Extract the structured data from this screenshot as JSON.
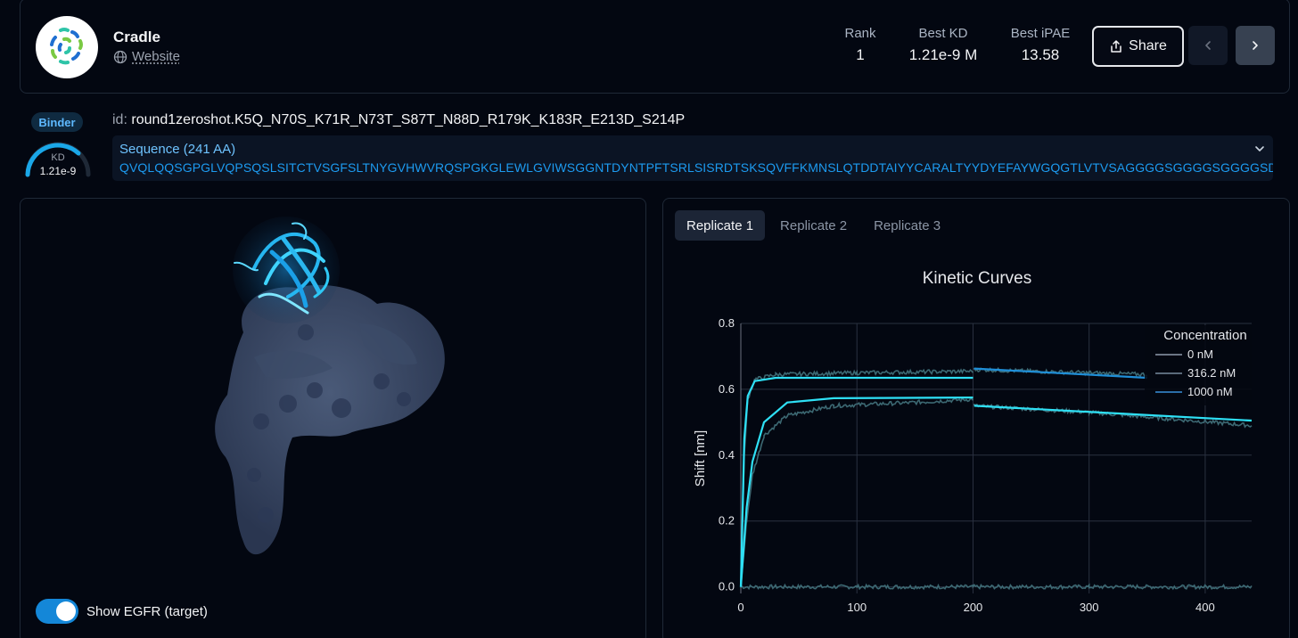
{
  "header": {
    "org_name": "Cradle",
    "website_label": "Website",
    "stats": [
      {
        "label": "Rank",
        "value": "1"
      },
      {
        "label": "Best KD",
        "value": "1.21e-9 M"
      },
      {
        "label": "Best iPAE",
        "value": "13.58"
      }
    ],
    "share_label": "Share"
  },
  "binder": {
    "badge": "Binder",
    "kd_label": "KD",
    "kd_value": "1.21e-9"
  },
  "sequence": {
    "id_prefix": "id:",
    "id": "round1zeroshot.K5Q_N70S_K71R_N73T_S87T_N88D_R179K_K183R_E213D_S214P",
    "title": "Sequence (241 AA)",
    "text": "QVQLQQSGPGLVQPSQSLSITCTVSGFSLTNYGVHWVRQSPGKGLEWLGVIWSGGNTDYNTPFTSRLSISRDTSKSQVFFKMNSLQTDDTAIYYCARALTYYDYEFAYWGQGTLVTVSAGGGGSGGGGSGGGGSDIQMTQSPSSLSASVGDRVTITC"
  },
  "viewer": {
    "toggle_label": "Show EGFR (target)",
    "toggle_on": true
  },
  "tabs": [
    {
      "label": "Replicate 1",
      "active": true
    },
    {
      "label": "Replicate 2",
      "active": false
    },
    {
      "label": "Replicate 3",
      "active": false
    }
  ],
  "colors": {
    "accent": "#1487d8",
    "fit_curve": "#2ee0f5",
    "raw_trace": "#3f6e78",
    "fit_1000": "#1f8fd8"
  },
  "chart_data": {
    "type": "line",
    "title": "Kinetic Curves",
    "xlabel": "",
    "ylabel": "Shift [nm]",
    "xlim": [
      0,
      440
    ],
    "ylim": [
      -0.02,
      0.8
    ],
    "x_ticks": [
      0,
      100,
      200,
      300,
      400
    ],
    "y_ticks": [
      0.0,
      0.2,
      0.4,
      0.6,
      0.8
    ],
    "y_tick_labels": [
      "0.0",
      "0.2",
      "0.4",
      "0.6",
      "0.8"
    ],
    "grid": true,
    "legend_title": "Concentration",
    "legend_position": "top-right",
    "series": [
      {
        "name": "0 nM",
        "kind": "raw",
        "points": [
          [
            0,
            0.0
          ],
          [
            100,
            0.0
          ],
          [
            200,
            0.0
          ],
          [
            300,
            0.0
          ],
          [
            440,
            0.0
          ]
        ]
      },
      {
        "name": "316.2 nM",
        "kind": "raw",
        "points": [
          [
            0,
            0.0
          ],
          [
            5,
            0.2
          ],
          [
            10,
            0.34
          ],
          [
            20,
            0.46
          ],
          [
            40,
            0.52
          ],
          [
            80,
            0.55
          ],
          [
            150,
            0.56
          ],
          [
            200,
            0.57
          ],
          [
            201,
            0.55
          ],
          [
            300,
            0.53
          ],
          [
            440,
            0.49
          ]
        ]
      },
      {
        "name": "1000 nM",
        "kind": "raw",
        "points": [
          [
            0,
            0.0
          ],
          [
            3,
            0.4
          ],
          [
            6,
            0.57
          ],
          [
            12,
            0.63
          ],
          [
            30,
            0.645
          ],
          [
            100,
            0.65
          ],
          [
            200,
            0.655
          ],
          [
            201,
            0.66
          ],
          [
            300,
            0.65
          ],
          [
            350,
            0.645
          ]
        ]
      }
    ],
    "fits": [
      {
        "points": [
          [
            0,
            0.0
          ],
          [
            5,
            0.24
          ],
          [
            10,
            0.38
          ],
          [
            20,
            0.5
          ],
          [
            40,
            0.56
          ],
          [
            80,
            0.573
          ],
          [
            200,
            0.575
          ]
        ]
      },
      {
        "points": [
          [
            201,
            0.55
          ],
          [
            440,
            0.505
          ]
        ]
      },
      {
        "points": [
          [
            0,
            0.0
          ],
          [
            3,
            0.45
          ],
          [
            6,
            0.58
          ],
          [
            12,
            0.625
          ],
          [
            30,
            0.635
          ],
          [
            200,
            0.635
          ]
        ]
      },
      {
        "points": [
          [
            201,
            0.663
          ],
          [
            350,
            0.635
          ]
        ]
      }
    ]
  }
}
